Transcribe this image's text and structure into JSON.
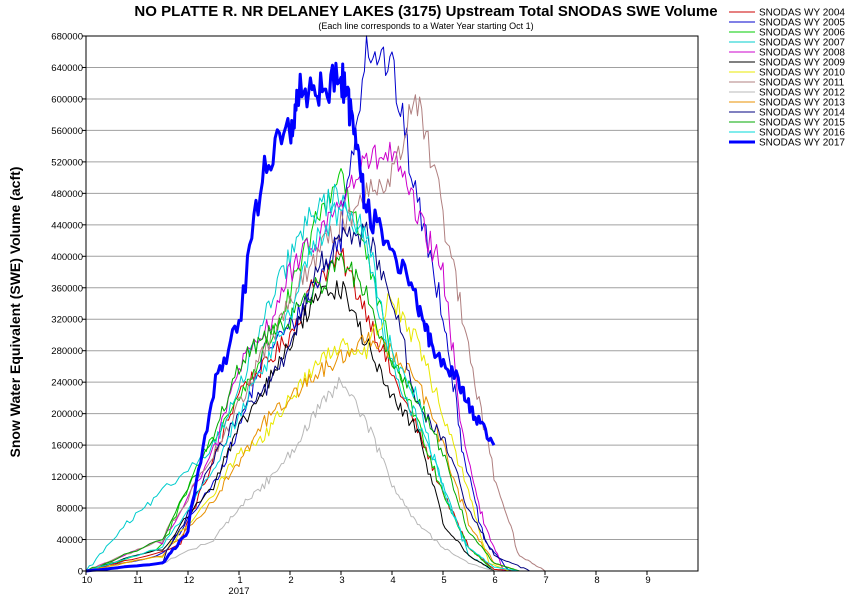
{
  "chart_data": {
    "type": "line",
    "title": "NO PLATTE R. NR DELANEY LAKES (3175) Upstream Total SNODAS SWE Volume",
    "subtitle": "(Each line corresponds to a Water Year starting Oct 1)",
    "ylabel": "Snow Water Equivalent (SWE) Volume (acft)",
    "xlabel": "",
    "ylim": [
      0,
      680000
    ],
    "xlim": [
      0,
      12
    ],
    "grid": true,
    "legend_position": "top-right",
    "x_ticks": [
      {
        "x": 0,
        "label": "10"
      },
      {
        "x": 1,
        "label": "11"
      },
      {
        "x": 2,
        "label": "12"
      },
      {
        "x": 3,
        "label": "1"
      },
      {
        "x": 4,
        "label": "2"
      },
      {
        "x": 5,
        "label": "3"
      },
      {
        "x": 6,
        "label": "4"
      },
      {
        "x": 7,
        "label": "5"
      },
      {
        "x": 8,
        "label": "6"
      },
      {
        "x": 9,
        "label": "7"
      },
      {
        "x": 10,
        "label": "8"
      },
      {
        "x": 11,
        "label": "9"
      }
    ],
    "x_year_label": {
      "x": 3,
      "label": "2017"
    },
    "y_ticks": [
      0,
      40000,
      80000,
      120000,
      160000,
      200000,
      240000,
      280000,
      320000,
      360000,
      400000,
      440000,
      480000,
      520000,
      560000,
      600000,
      640000,
      680000
    ],
    "series": [
      {
        "name": "SNODAS WY 2004",
        "color": "#cc0000",
        "width": 1,
        "points": [
          [
            0,
            0
          ],
          [
            1.8,
            30000
          ],
          [
            2.5,
            140000
          ],
          [
            3,
            230000
          ],
          [
            3.5,
            260000
          ],
          [
            4,
            300000
          ],
          [
            4.5,
            370000
          ],
          [
            5,
            400000
          ],
          [
            5.5,
            330000
          ],
          [
            6,
            250000
          ],
          [
            6.5,
            180000
          ],
          [
            7,
            100000
          ],
          [
            7.5,
            30000
          ],
          [
            8,
            2000
          ],
          [
            8.5,
            0
          ]
        ]
      },
      {
        "name": "SNODAS WY 2005",
        "color": "#0000cc",
        "width": 1,
        "points": [
          [
            0,
            0
          ],
          [
            1.5,
            20000
          ],
          [
            2.5,
            110000
          ],
          [
            3,
            180000
          ],
          [
            3.5,
            280000
          ],
          [
            4,
            310000
          ],
          [
            4.5,
            360000
          ],
          [
            5,
            430000
          ],
          [
            5.5,
            670000
          ],
          [
            6,
            640000
          ],
          [
            6.5,
            470000
          ],
          [
            7,
            330000
          ],
          [
            7.4,
            150000
          ],
          [
            7.8,
            40000
          ],
          [
            8.3,
            0
          ]
        ]
      },
      {
        "name": "SNODAS WY 2006",
        "color": "#00cc00",
        "width": 1,
        "points": [
          [
            0,
            0
          ],
          [
            1.5,
            30000
          ],
          [
            2.3,
            150000
          ],
          [
            3,
            220000
          ],
          [
            3.5,
            280000
          ],
          [
            4,
            350000
          ],
          [
            4.5,
            440000
          ],
          [
            5,
            510000
          ],
          [
            5.5,
            400000
          ],
          [
            6,
            270000
          ],
          [
            6.5,
            190000
          ],
          [
            7,
            100000
          ],
          [
            7.5,
            30000
          ],
          [
            8,
            0
          ]
        ]
      },
      {
        "name": "SNODAS WY 2007",
        "color": "#00cccc",
        "width": 1,
        "points": [
          [
            0,
            0
          ],
          [
            0.8,
            60000
          ],
          [
            1.5,
            100000
          ],
          [
            2.5,
            160000
          ],
          [
            3,
            230000
          ],
          [
            3.5,
            320000
          ],
          [
            4,
            400000
          ],
          [
            4.5,
            460000
          ],
          [
            5,
            480000
          ],
          [
            5.5,
            410000
          ],
          [
            6,
            260000
          ],
          [
            6.5,
            190000
          ],
          [
            7,
            110000
          ],
          [
            7.5,
            20000
          ],
          [
            8,
            0
          ]
        ]
      },
      {
        "name": "SNODAS WY 2008",
        "color": "#cc00cc",
        "width": 1,
        "points": [
          [
            0,
            0
          ],
          [
            1.5,
            40000
          ],
          [
            2.5,
            150000
          ],
          [
            3,
            260000
          ],
          [
            3.5,
            300000
          ],
          [
            4,
            380000
          ],
          [
            4.5,
            420000
          ],
          [
            5,
            470000
          ],
          [
            5.5,
            520000
          ],
          [
            6,
            530000
          ],
          [
            6.5,
            450000
          ],
          [
            7,
            380000
          ],
          [
            7.4,
            170000
          ],
          [
            7.8,
            60000
          ],
          [
            8.2,
            0
          ]
        ]
      },
      {
        "name": "SNODAS WY 2009",
        "color": "#000000",
        "width": 1,
        "points": [
          [
            0,
            0
          ],
          [
            1.5,
            30000
          ],
          [
            2.5,
            110000
          ],
          [
            3,
            180000
          ],
          [
            3.5,
            230000
          ],
          [
            4,
            290000
          ],
          [
            4.5,
            350000
          ],
          [
            5,
            360000
          ],
          [
            5.5,
            290000
          ],
          [
            6,
            220000
          ],
          [
            6.5,
            180000
          ],
          [
            7,
            60000
          ],
          [
            7.5,
            20000
          ],
          [
            8,
            0
          ]
        ]
      },
      {
        "name": "SNODAS WY 2010",
        "color": "#e8e800",
        "width": 1,
        "points": [
          [
            0,
            0
          ],
          [
            1.5,
            20000
          ],
          [
            2.5,
            100000
          ],
          [
            3,
            150000
          ],
          [
            3.5,
            170000
          ],
          [
            4,
            220000
          ],
          [
            4.5,
            260000
          ],
          [
            5,
            290000
          ],
          [
            5.5,
            280000
          ],
          [
            6,
            350000
          ],
          [
            6.5,
            290000
          ],
          [
            7,
            200000
          ],
          [
            7.5,
            100000
          ],
          [
            7.9,
            10000
          ],
          [
            8.3,
            0
          ]
        ]
      },
      {
        "name": "SNODAS WY 2011",
        "color": "#b08080",
        "width": 1,
        "points": [
          [
            0,
            0
          ],
          [
            1.5,
            40000
          ],
          [
            2.5,
            150000
          ],
          [
            3,
            210000
          ],
          [
            3.5,
            280000
          ],
          [
            4,
            340000
          ],
          [
            4.5,
            400000
          ],
          [
            5,
            440000
          ],
          [
            5.5,
            480000
          ],
          [
            6,
            510000
          ],
          [
            6.5,
            600000
          ],
          [
            7,
            450000
          ],
          [
            7.5,
            280000
          ],
          [
            8,
            120000
          ],
          [
            8.5,
            20000
          ],
          [
            9,
            0
          ]
        ]
      },
      {
        "name": "SNODAS WY 2012",
        "color": "#b8b8b8",
        "width": 1,
        "points": [
          [
            0,
            0
          ],
          [
            1.5,
            10000
          ],
          [
            2.5,
            40000
          ],
          [
            3,
            80000
          ],
          [
            3.5,
            110000
          ],
          [
            4,
            150000
          ],
          [
            4.5,
            200000
          ],
          [
            5,
            240000
          ],
          [
            5.5,
            190000
          ],
          [
            6,
            110000
          ],
          [
            6.5,
            60000
          ],
          [
            7,
            30000
          ],
          [
            7.5,
            10000
          ],
          [
            8,
            0
          ]
        ]
      },
      {
        "name": "SNODAS WY 2013",
        "color": "#e89000",
        "width": 1,
        "points": [
          [
            0,
            0
          ],
          [
            1.5,
            20000
          ],
          [
            2.5,
            90000
          ],
          [
            3,
            140000
          ],
          [
            3.5,
            190000
          ],
          [
            4,
            220000
          ],
          [
            4.5,
            250000
          ],
          [
            5,
            270000
          ],
          [
            5.5,
            300000
          ],
          [
            6,
            280000
          ],
          [
            6.5,
            240000
          ],
          [
            7,
            160000
          ],
          [
            7.5,
            60000
          ],
          [
            8,
            10000
          ],
          [
            8.5,
            0
          ]
        ]
      },
      {
        "name": "SNODAS WY 2014",
        "color": "#000080",
        "width": 1,
        "points": [
          [
            0,
            0
          ],
          [
            1.5,
            10000
          ],
          [
            2.5,
            140000
          ],
          [
            3,
            200000
          ],
          [
            3.5,
            230000
          ],
          [
            4,
            280000
          ],
          [
            4.5,
            380000
          ],
          [
            5,
            420000
          ],
          [
            5.5,
            430000
          ],
          [
            6,
            350000
          ],
          [
            6.5,
            210000
          ],
          [
            7,
            170000
          ],
          [
            7.5,
            80000
          ],
          [
            8,
            20000
          ],
          [
            8.7,
            0
          ]
        ]
      },
      {
        "name": "SNODAS WY 2015",
        "color": "#00aa00",
        "width": 1,
        "points": [
          [
            0,
            0
          ],
          [
            1.5,
            40000
          ],
          [
            2.5,
            170000
          ],
          [
            3,
            260000
          ],
          [
            3.5,
            300000
          ],
          [
            4,
            320000
          ],
          [
            4.5,
            360000
          ],
          [
            5,
            390000
          ],
          [
            5.5,
            360000
          ],
          [
            6,
            260000
          ],
          [
            6.5,
            220000
          ],
          [
            7,
            150000
          ],
          [
            7.5,
            50000
          ],
          [
            8,
            10000
          ],
          [
            8.5,
            0
          ]
        ]
      },
      {
        "name": "SNODAS WY 2016",
        "color": "#00d8d8",
        "width": 1,
        "points": [
          [
            0,
            0
          ],
          [
            1.5,
            30000
          ],
          [
            2.5,
            130000
          ],
          [
            3,
            200000
          ],
          [
            3.5,
            260000
          ],
          [
            4,
            330000
          ],
          [
            4.5,
            420000
          ],
          [
            5,
            460000
          ],
          [
            5.5,
            430000
          ],
          [
            6,
            270000
          ],
          [
            6.5,
            220000
          ],
          [
            7,
            100000
          ],
          [
            7.5,
            30000
          ],
          [
            8,
            5000
          ],
          [
            8.5,
            0
          ]
        ]
      },
      {
        "name": "SNODAS WY 2017",
        "color": "#0000ff",
        "width": 3,
        "points": [
          [
            0,
            0
          ],
          [
            1.5,
            10000
          ],
          [
            2,
            50000
          ],
          [
            2.5,
            230000
          ],
          [
            3,
            320000
          ],
          [
            3.5,
            520000
          ],
          [
            4,
            560000
          ],
          [
            4.2,
            610000
          ],
          [
            4.6,
            610000
          ],
          [
            5,
            630000
          ],
          [
            5.2,
            580000
          ],
          [
            5.5,
            460000
          ],
          [
            6,
            410000
          ],
          [
            6.5,
            340000
          ],
          [
            6.8,
            280000
          ],
          [
            7.3,
            240000
          ],
          [
            7.6,
            200000
          ],
          [
            8,
            160000
          ]
        ]
      }
    ]
  }
}
